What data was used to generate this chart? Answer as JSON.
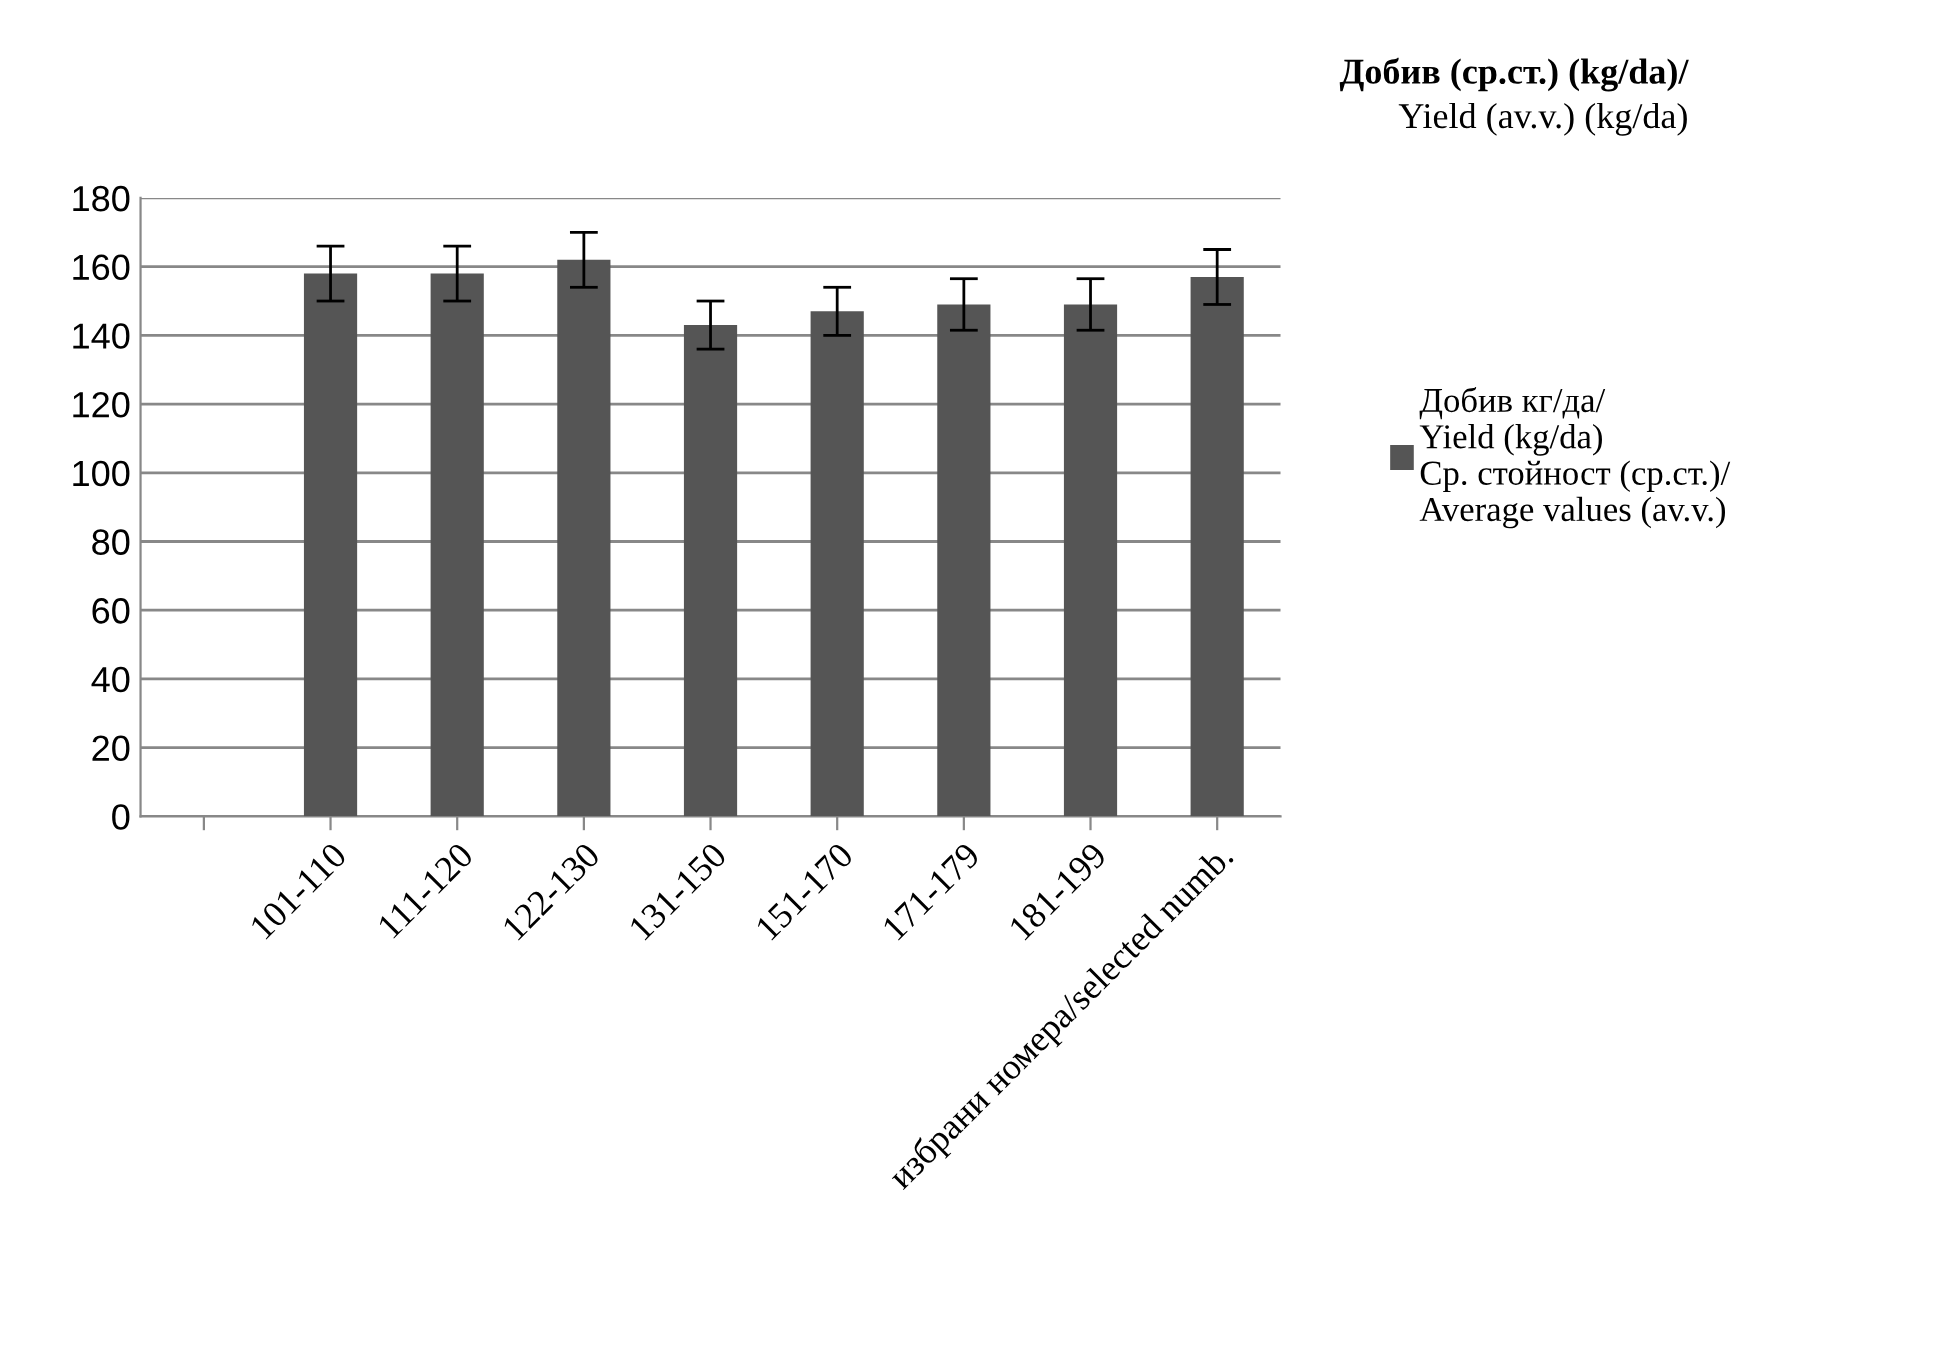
{
  "chart_data": {
    "type": "bar",
    "title": "Добив (ср.ст.) (kg/da)/\nYield (av.v.) (kg/da)",
    "categories": [
      null,
      "101-110",
      "111-120",
      "122-130",
      "131-150",
      "151-170",
      "171-179",
      "181-199",
      "избрани номера/selected numb."
    ],
    "series": [
      {
        "name": "Добив кг/да/\nYield (kg/da)\nСр. стойност (ср.ст.)/\nAverage values (av.v.)",
        "color": "#555555",
        "values": [
          null,
          158,
          158,
          162,
          143,
          147,
          149,
          149,
          157
        ],
        "errors": [
          null,
          8,
          8,
          8,
          7,
          7,
          7.5,
          7.5,
          8
        ]
      }
    ],
    "ylim": [
      0,
      180
    ],
    "yticks": [
      0,
      20,
      40,
      60,
      80,
      100,
      120,
      140,
      160,
      180
    ],
    "grid": "y",
    "legend": "right"
  }
}
